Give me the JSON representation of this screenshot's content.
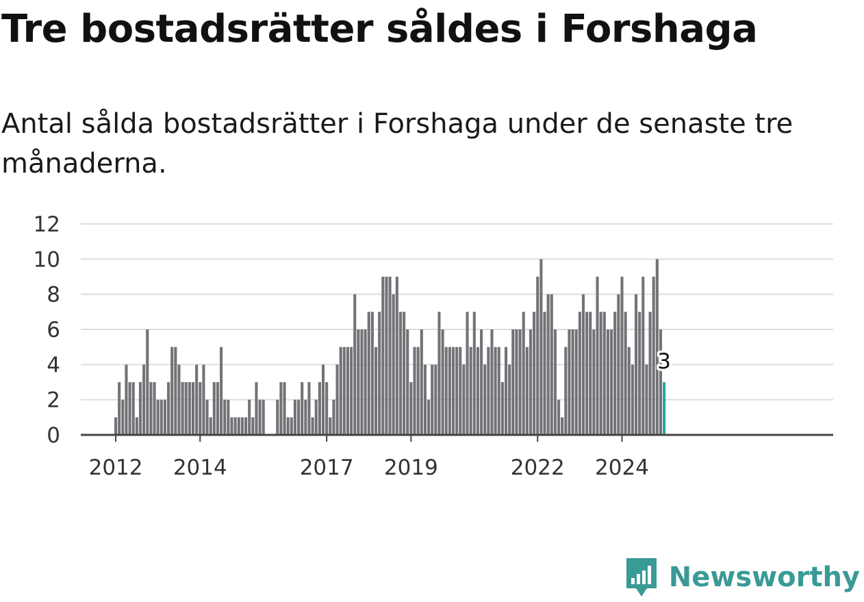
{
  "title": "Tre bostadsrätter såldes i Forshaga",
  "subtitle": "Antal sålda bostadsrätter i Forshaga under de senaste tre månaderna.",
  "brand": "Newsworthy",
  "colors": {
    "bar": "#737277",
    "highlight": "#27a6a1",
    "grid": "#dddddd",
    "axis": "#444444",
    "brand": "#3a9a96"
  },
  "chart_data": {
    "type": "bar",
    "title": "Tre bostadsrätter såldes i Forshaga",
    "subtitle": "Antal sålda bostadsrätter i Forshaga under de senaste tre månaderna.",
    "start": "2012-01",
    "frequency": "monthly",
    "ylim": [
      0,
      12
    ],
    "yticks": [
      0,
      2,
      4,
      6,
      8,
      10,
      12
    ],
    "xticks": [
      "2012",
      "2014",
      "2017",
      "2019",
      "2022",
      "2024"
    ],
    "grid": true,
    "values": [
      1,
      3,
      2,
      4,
      3,
      3,
      1,
      3,
      4,
      6,
      3,
      3,
      2,
      2,
      2,
      3,
      5,
      5,
      4,
      3,
      3,
      3,
      3,
      4,
      3,
      4,
      2,
      1,
      3,
      3,
      5,
      2,
      2,
      1,
      1,
      1,
      1,
      1,
      2,
      1,
      3,
      2,
      2,
      0,
      0,
      0,
      2,
      3,
      3,
      1,
      1,
      2,
      2,
      3,
      2,
      3,
      1,
      2,
      3,
      4,
      3,
      1,
      2,
      4,
      5,
      5,
      5,
      5,
      8,
      6,
      6,
      6,
      7,
      7,
      5,
      7,
      9,
      9,
      9,
      8,
      9,
      7,
      7,
      6,
      3,
      5,
      5,
      6,
      4,
      2,
      4,
      4,
      7,
      6,
      5,
      5,
      5,
      5,
      5,
      4,
      7,
      5,
      7,
      5,
      6,
      4,
      5,
      6,
      5,
      5,
      3,
      5,
      4,
      6,
      6,
      6,
      7,
      5,
      6,
      7,
      9,
      10,
      7,
      8,
      8,
      6,
      2,
      1,
      5,
      6,
      6,
      6,
      7,
      8,
      7,
      7,
      6,
      9,
      7,
      7,
      6,
      6,
      7,
      8,
      9,
      7,
      5,
      4,
      8,
      7,
      9,
      4,
      7,
      9,
      10,
      6,
      3
    ],
    "highlight_label": "3"
  }
}
